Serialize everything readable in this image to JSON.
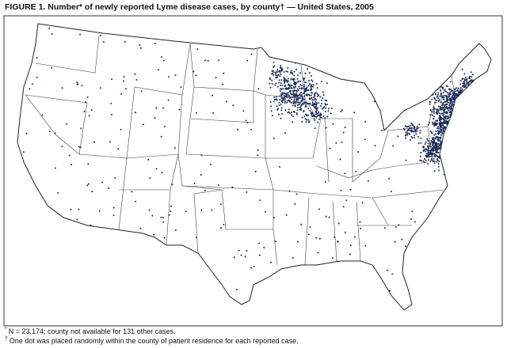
{
  "header": {
    "title": "FIGURE 1. Number* of newly reported Lyme disease cases, by county† — United States, 2005"
  },
  "footnotes": [
    {
      "marker": "*",
      "text": "N = 23,174; county not available for 131 other cases."
    },
    {
      "marker": "†",
      "text": "One dot was placed randomly within the county of patient residence for each reported case."
    }
  ]
}
